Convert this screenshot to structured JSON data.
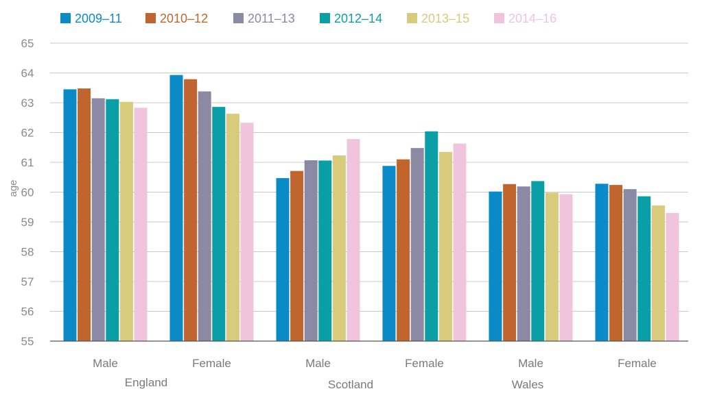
{
  "chart_data": {
    "type": "bar",
    "ylabel": "age",
    "xlabel": "",
    "ylim": [
      55,
      65
    ],
    "yticks": [
      "55",
      "56",
      "57",
      "58",
      "59",
      "60",
      "61",
      "62",
      "63",
      "64",
      "65"
    ],
    "grid": true,
    "legend_position": "top-left",
    "categories": [
      "Male",
      "Female",
      "Male",
      "Female",
      "Male",
      "Female"
    ],
    "groups": [
      {
        "label": "England",
        "categories": [
          "Male",
          "Female"
        ]
      },
      {
        "label": "Scotland",
        "categories": [
          "Male",
          "Female"
        ]
      },
      {
        "label": "Wales",
        "categories": [
          "Male",
          "Female"
        ]
      }
    ],
    "series": [
      {
        "name": "2009–11",
        "color": "#0a8ac6",
        "values": [
          63.45,
          63.93,
          60.47,
          60.88,
          60.02,
          60.28
        ]
      },
      {
        "name": "2010–12",
        "color": "#c0652e",
        "values": [
          63.48,
          63.79,
          60.71,
          61.1,
          60.27,
          60.24
        ]
      },
      {
        "name": "2011–13",
        "color": "#8b89a3",
        "values": [
          63.15,
          63.38,
          61.07,
          61.48,
          60.19,
          60.1
        ]
      },
      {
        "name": "2012–14",
        "color": "#0a9ea6",
        "values": [
          63.12,
          62.86,
          61.06,
          62.04,
          60.37,
          59.86
        ]
      },
      {
        "name": "2013–15",
        "color": "#d9cb7c",
        "values": [
          63.03,
          62.63,
          61.23,
          61.35,
          59.98,
          59.55
        ]
      },
      {
        "name": "2014–16",
        "color": "#f0c4dc",
        "values": [
          62.83,
          62.33,
          61.78,
          61.63,
          59.93,
          59.3
        ]
      }
    ]
  }
}
